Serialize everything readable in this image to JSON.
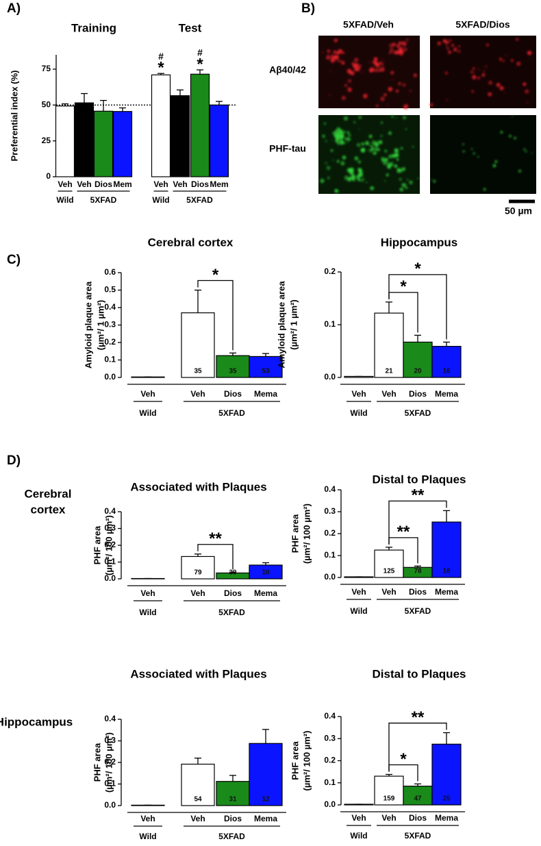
{
  "panels": {
    "A": "A)",
    "B": "B)",
    "C": "C)",
    "D": "D)"
  },
  "row_labels": [
    [
      "Cerebral",
      "cortex"
    ],
    [
      "Hippocampus"
    ]
  ],
  "images": {
    "columns": [
      "5XFAD/Veh",
      "5XFAD/Dios"
    ],
    "rows": [
      "Aβ40/42",
      "PHF-tau"
    ],
    "scale_bar": "50 µm"
  },
  "chart_data": [
    {
      "type": "bar",
      "ylabel": [
        "Preferential index (%)"
      ],
      "categories": [
        "Veh",
        "Veh",
        "Dios",
        "Mem",
        "Veh",
        "Veh",
        "Dios",
        "Mem"
      ],
      "values": [
        49.3,
        51.5,
        45.7,
        45.5,
        71,
        56.5,
        71.5,
        50
      ],
      "errors": [
        1.5,
        6.5,
        7.5,
        2.5,
        1,
        4,
        3,
        2.5
      ],
      "colors": [
        "#ffffff",
        "#000000",
        "#1a8a1a",
        "#0a14ff",
        "#ffffff",
        "#000000",
        "#1a8a1a",
        "#0a14ff"
      ],
      "sections": [
        {
          "title": "Training",
          "span": [
            0,
            3
          ]
        },
        {
          "title": "Test",
          "span": [
            4,
            7
          ]
        }
      ],
      "groups": [
        {
          "label": "Wild",
          "span": [
            0,
            0
          ]
        },
        {
          "label": "5XFAD",
          "span": [
            1,
            3
          ]
        },
        {
          "label": "Wild",
          "span": [
            4,
            4
          ]
        },
        {
          "label": "5XFAD",
          "span": [
            5,
            7
          ]
        }
      ],
      "annotations": [
        {
          "index": 4,
          "labels": [
            "#",
            "*"
          ]
        },
        {
          "index": 6,
          "labels": [
            "#",
            "*"
          ]
        }
      ],
      "reference_line": 50,
      "ylim": [
        0,
        85
      ],
      "yticks": [
        0,
        25,
        50,
        75
      ]
    },
    {
      "type": "bar",
      "title": "Cerebral cortex",
      "ylabel": [
        "Amyloid plaque area",
        "(µm²/ 1 µm²)"
      ],
      "categories": [
        "Veh",
        "Veh",
        "Dios",
        "Mema"
      ],
      "values": [
        0.003,
        0.37,
        0.125,
        0.12
      ],
      "errors": [
        0,
        0.13,
        0.015,
        0.017
      ],
      "n": [
        null,
        35,
        35,
        53
      ],
      "colors": [
        "#ffffff",
        "#ffffff",
        "#1a8a1a",
        "#0a14ff"
      ],
      "groups": [
        {
          "label": "Wild",
          "span": [
            0,
            0
          ]
        },
        {
          "label": "5XFAD",
          "span": [
            1,
            3
          ]
        }
      ],
      "brackets": [
        {
          "from": 1,
          "to": 2,
          "label": "*"
        }
      ],
      "ylim": [
        0,
        0.6
      ],
      "yticks": [
        {
          "value": 0,
          "label": "0.0"
        },
        0.1,
        0.2,
        0.3,
        0.4,
        0.5,
        0.6
      ]
    },
    {
      "type": "bar",
      "title": "Hippocampus",
      "ylabel": [
        "Amyloid plaque area",
        "(µm²/ 1 µm²)"
      ],
      "categories": [
        "Veh",
        "Veh",
        "Dios",
        "Mema"
      ],
      "values": [
        0.002,
        0.122,
        0.067,
        0.059
      ],
      "errors": [
        0,
        0.021,
        0.013,
        0.008
      ],
      "n": [
        null,
        21,
        20,
        16
      ],
      "colors": [
        "#ffffff",
        "#ffffff",
        "#1a8a1a",
        "#0a14ff"
      ],
      "groups": [
        {
          "label": "Wild",
          "span": [
            0,
            0
          ]
        },
        {
          "label": "5XFAD",
          "span": [
            1,
            3
          ]
        }
      ],
      "brackets": [
        {
          "from": 1,
          "to": 2,
          "label": "*"
        },
        {
          "from": 1,
          "to": 3,
          "label": "*"
        }
      ],
      "ylim": [
        0,
        0.2
      ],
      "yticks": [
        {
          "value": 0,
          "label": "0.0"
        },
        0.1,
        0.2
      ]
    },
    {
      "type": "bar",
      "title": "Associated with Plaques",
      "ylabel": [
        "PHF area",
        "(µm²/ 100 µm²)"
      ],
      "categories": [
        "Veh",
        "Veh",
        "Dios",
        "Mema"
      ],
      "values": [
        0.002,
        0.133,
        0.035,
        0.082
      ],
      "errors": [
        0,
        0.015,
        0.005,
        0.014
      ],
      "n": [
        null,
        79,
        39,
        10
      ],
      "colors": [
        "#ffffff",
        "#ffffff",
        "#1a8a1a",
        "#0a14ff"
      ],
      "groups": [
        {
          "label": "Wild",
          "span": [
            0,
            0
          ]
        },
        {
          "label": "5XFAD",
          "span": [
            1,
            3
          ]
        }
      ],
      "brackets": [
        {
          "from": 1,
          "to": 2,
          "label": "**"
        }
      ],
      "ylim": [
        0,
        0.4
      ],
      "yticks": [
        {
          "value": 0,
          "label": "0.0"
        },
        0.1,
        0.2,
        0.3,
        0.4
      ]
    },
    {
      "type": "bar",
      "title": "Distal to Plaques",
      "ylabel": [
        "PHF area",
        "(µm²/ 100 µm²)"
      ],
      "categories": [
        "Veh",
        "Veh",
        "Dios",
        "Mema"
      ],
      "values": [
        0.003,
        0.125,
        0.046,
        0.253
      ],
      "errors": [
        0,
        0.013,
        0.006,
        0.052
      ],
      "n": [
        null,
        125,
        78,
        18
      ],
      "colors": [
        "#ffffff",
        "#ffffff",
        "#1a8a1a",
        "#0a14ff"
      ],
      "groups": [
        {
          "label": "Wild",
          "span": [
            0,
            0
          ]
        },
        {
          "label": "5XFAD",
          "span": [
            1,
            3
          ]
        }
      ],
      "brackets": [
        {
          "from": 1,
          "to": 2,
          "label": "**"
        },
        {
          "from": 1,
          "to": 3,
          "label": "**"
        }
      ],
      "ylim": [
        0,
        0.4
      ],
      "yticks": [
        {
          "value": 0,
          "label": "0.0"
        },
        0.1,
        0.2,
        0.3,
        0.4
      ]
    },
    {
      "type": "bar",
      "title": "Associated with Plaques",
      "ylabel": [
        "PHF area",
        "(µm²/ 100 µm²)"
      ],
      "categories": [
        "Veh",
        "Veh",
        "Dios",
        "Mema"
      ],
      "values": [
        0.002,
        0.192,
        0.112,
        0.288
      ],
      "errors": [
        0,
        0.028,
        0.028,
        0.065
      ],
      "n": [
        null,
        54,
        31,
        12
      ],
      "colors": [
        "#ffffff",
        "#ffffff",
        "#1a8a1a",
        "#0a14ff"
      ],
      "groups": [
        {
          "label": "Wild",
          "span": [
            0,
            0
          ]
        },
        {
          "label": "5XFAD",
          "span": [
            1,
            3
          ]
        }
      ],
      "ylim": [
        0,
        0.4
      ],
      "yticks": [
        {
          "value": 0,
          "label": "0.0"
        },
        0.1,
        0.2,
        0.3,
        0.4
      ]
    },
    {
      "type": "bar",
      "title": "Distal to Plaques",
      "ylabel": [
        "PHF area",
        "(µm²/ 100 µm²)"
      ],
      "categories": [
        "Veh",
        "Veh",
        "Dios",
        "Mema"
      ],
      "values": [
        0.003,
        0.13,
        0.085,
        0.275
      ],
      "errors": [
        0,
        0.008,
        0.01,
        0.052
      ],
      "n": [
        null,
        159,
        47,
        25
      ],
      "colors": [
        "#ffffff",
        "#ffffff",
        "#1a8a1a",
        "#0a14ff"
      ],
      "groups": [
        {
          "label": "Wild",
          "span": [
            0,
            0
          ]
        },
        {
          "label": "5XFAD",
          "span": [
            1,
            3
          ]
        }
      ],
      "brackets": [
        {
          "from": 1,
          "to": 2,
          "label": "*"
        },
        {
          "from": 1,
          "to": 3,
          "label": "**"
        }
      ],
      "ylim": [
        0,
        0.4
      ],
      "yticks": [
        {
          "value": 0,
          "label": "0.0"
        },
        0.1,
        0.2,
        0.3,
        0.4
      ]
    }
  ]
}
